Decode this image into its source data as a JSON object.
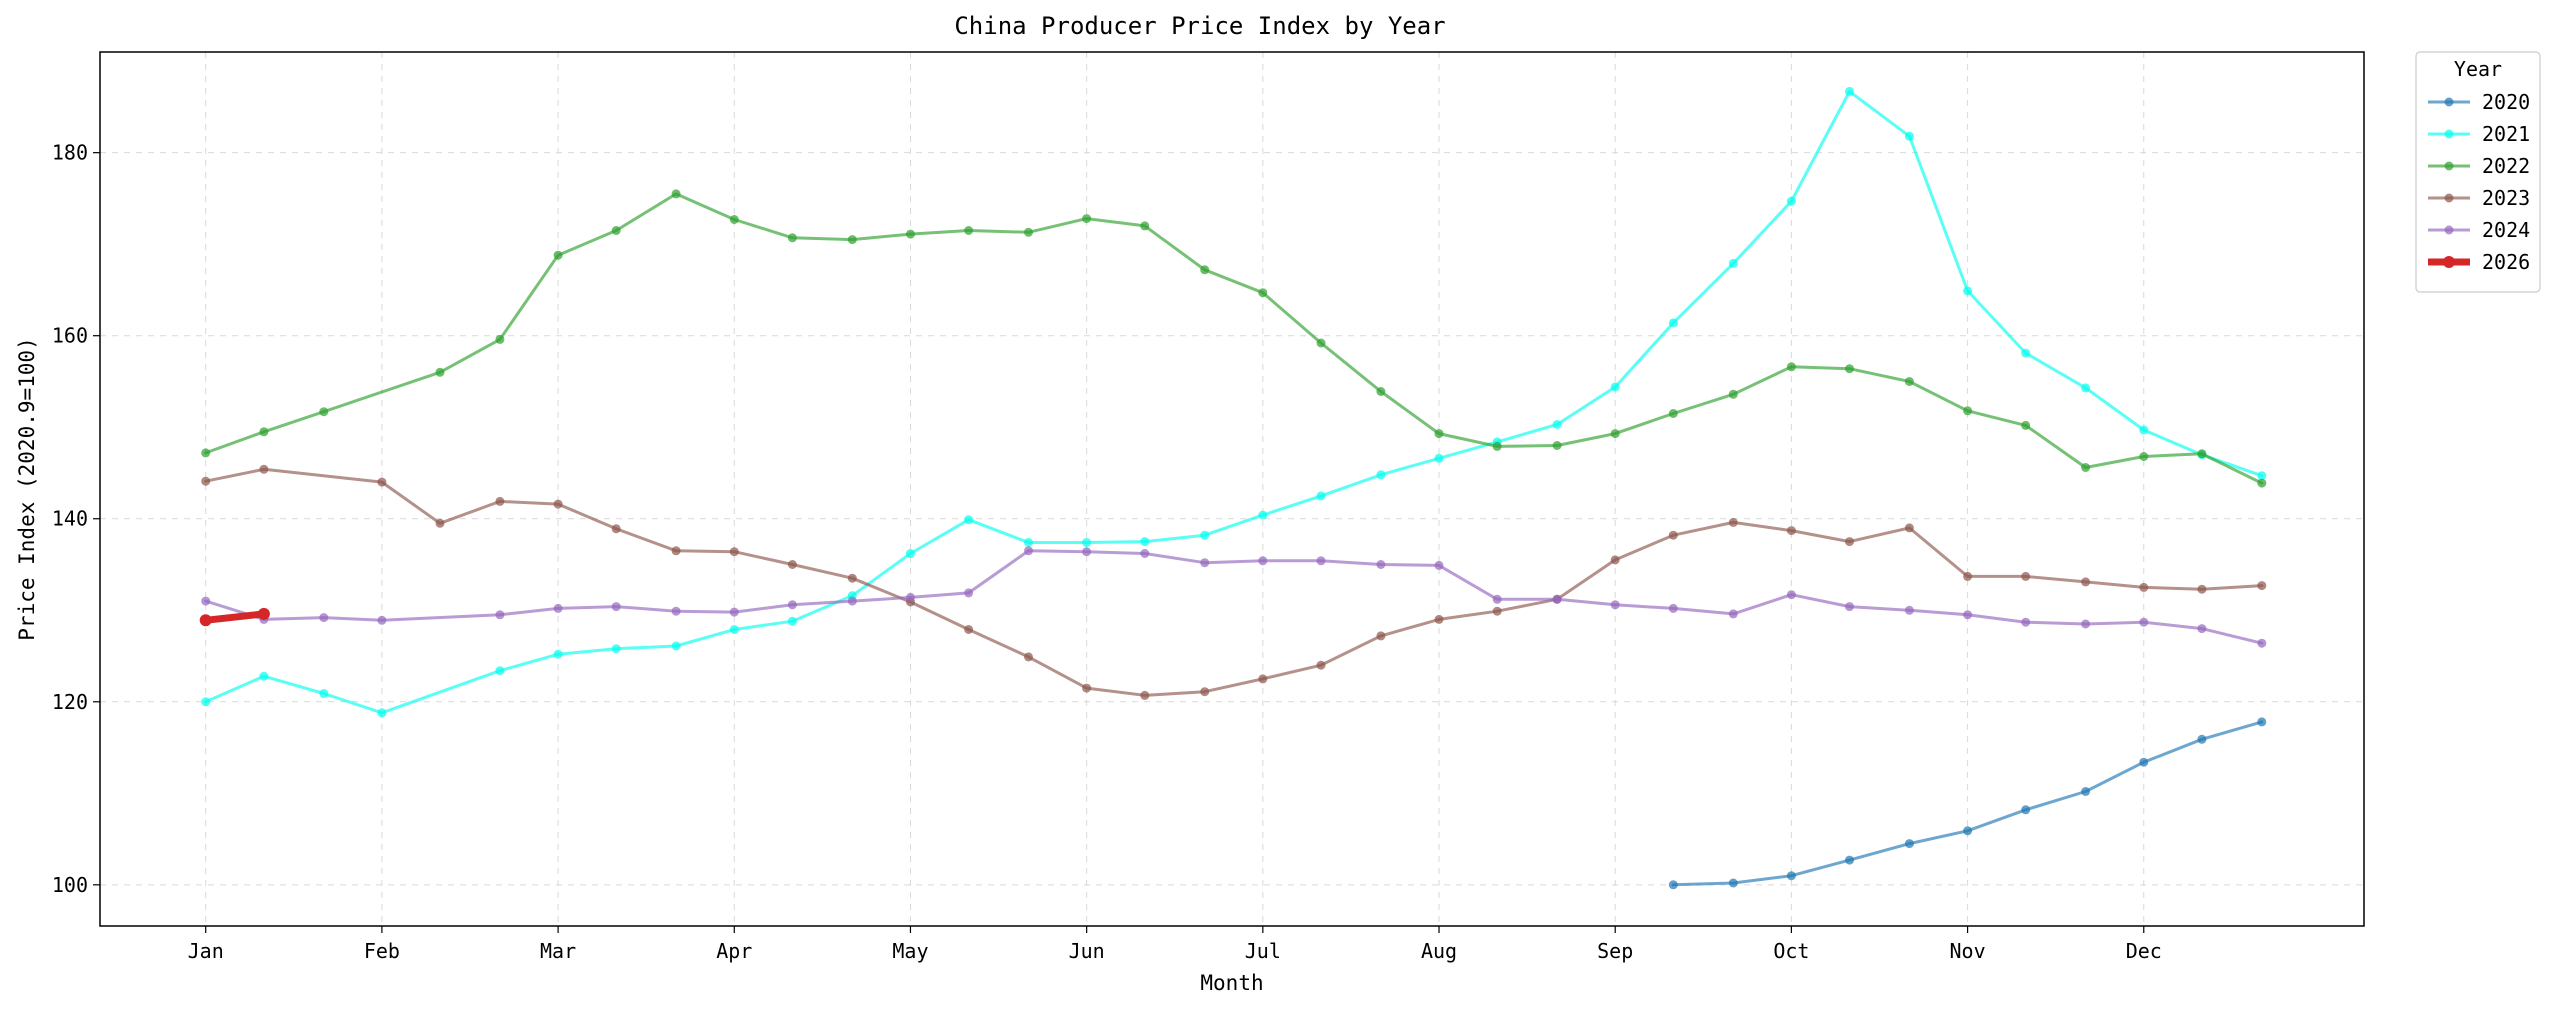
{
  "chart_data": {
    "type": "line",
    "title": "China Producer Price Index by Year",
    "xlabel": "Month",
    "ylabel": "Price Index (2020.9=100)",
    "x_ticks": [
      "Jan",
      "Feb",
      "Mar",
      "Apr",
      "May",
      "Jun",
      "Jul",
      "Aug",
      "Sep",
      "Oct",
      "Nov",
      "Dec"
    ],
    "y_ticks": [
      100,
      120,
      140,
      160,
      180
    ],
    "xlim": [
      -0.6,
      12.25
    ],
    "ylim": [
      95.5,
      191.0
    ],
    "grid": true,
    "legend": {
      "title": "Year",
      "placement": "outside-top-right"
    },
    "series": [
      {
        "name": "2020",
        "color": "#1f77b4",
        "points": [
          [
            8.33,
            100.0
          ],
          [
            8.67,
            100.2
          ],
          [
            9.0,
            101.0
          ],
          [
            9.33,
            102.7
          ],
          [
            9.67,
            104.5
          ],
          [
            10.0,
            105.9
          ],
          [
            10.33,
            108.2
          ],
          [
            10.67,
            110.2
          ],
          [
            11.0,
            113.4
          ],
          [
            11.33,
            115.9
          ],
          [
            11.67,
            117.8
          ]
        ]
      },
      {
        "name": "2021",
        "color": "#00ffee",
        "points": [
          [
            0.0,
            120.0
          ],
          [
            0.33,
            122.8
          ],
          [
            0.67,
            120.9
          ],
          [
            1.0,
            118.8
          ],
          [
            1.67,
            123.4
          ],
          [
            2.0,
            125.2
          ],
          [
            2.33,
            125.8
          ],
          [
            2.67,
            126.1
          ],
          [
            3.0,
            127.9
          ],
          [
            3.33,
            128.8
          ],
          [
            3.67,
            131.6
          ],
          [
            4.0,
            136.2
          ],
          [
            4.33,
            139.9
          ],
          [
            4.67,
            137.4
          ],
          [
            5.0,
            137.4
          ],
          [
            5.33,
            137.5
          ],
          [
            5.67,
            138.2
          ],
          [
            6.0,
            140.4
          ],
          [
            6.33,
            142.5
          ],
          [
            6.67,
            144.8
          ],
          [
            7.0,
            146.6
          ],
          [
            7.33,
            148.4
          ],
          [
            7.67,
            150.3
          ],
          [
            8.0,
            154.4
          ],
          [
            8.33,
            161.4
          ],
          [
            8.67,
            167.9
          ],
          [
            9.0,
            174.7
          ],
          [
            9.33,
            186.7
          ],
          [
            9.67,
            181.8
          ],
          [
            10.0,
            164.9
          ],
          [
            10.33,
            158.1
          ],
          [
            10.67,
            154.3
          ],
          [
            11.0,
            149.7
          ],
          [
            11.33,
            147.0
          ],
          [
            11.67,
            144.7
          ]
        ]
      },
      {
        "name": "2022",
        "color": "#2ca02c",
        "points": [
          [
            0.0,
            147.2
          ],
          [
            0.33,
            149.5
          ],
          [
            0.67,
            151.7
          ],
          [
            1.33,
            156.0
          ],
          [
            1.67,
            159.6
          ],
          [
            2.0,
            168.8
          ],
          [
            2.33,
            171.5
          ],
          [
            2.67,
            175.5
          ],
          [
            3.0,
            172.7
          ],
          [
            3.33,
            170.7
          ],
          [
            3.67,
            170.5
          ],
          [
            4.0,
            171.1
          ],
          [
            4.33,
            171.5
          ],
          [
            4.67,
            171.3
          ],
          [
            5.0,
            172.8
          ],
          [
            5.33,
            172.0
          ],
          [
            5.67,
            167.2
          ],
          [
            6.0,
            164.7
          ],
          [
            6.33,
            159.2
          ],
          [
            6.67,
            153.9
          ],
          [
            7.0,
            149.3
          ],
          [
            7.33,
            147.9
          ],
          [
            7.67,
            148.0
          ],
          [
            8.0,
            149.3
          ],
          [
            8.33,
            151.5
          ],
          [
            8.67,
            153.6
          ],
          [
            9.0,
            156.6
          ],
          [
            9.33,
            156.4
          ],
          [
            9.67,
            155.0
          ],
          [
            10.0,
            151.8
          ],
          [
            10.33,
            150.2
          ],
          [
            10.67,
            145.6
          ],
          [
            11.0,
            146.8
          ],
          [
            11.33,
            147.1
          ],
          [
            11.67,
            143.9
          ]
        ]
      },
      {
        "name": "2023",
        "color": "#8c564b",
        "points": [
          [
            0.0,
            144.1
          ],
          [
            0.33,
            145.4
          ],
          [
            1.0,
            144.0
          ],
          [
            1.33,
            139.5
          ],
          [
            1.67,
            141.9
          ],
          [
            2.0,
            141.6
          ],
          [
            2.33,
            138.9
          ],
          [
            2.67,
            136.5
          ],
          [
            3.0,
            136.4
          ],
          [
            3.33,
            135.0
          ],
          [
            3.67,
            133.5
          ],
          [
            4.0,
            130.9
          ],
          [
            4.33,
            127.9
          ],
          [
            4.67,
            124.9
          ],
          [
            5.0,
            121.5
          ],
          [
            5.33,
            120.7
          ],
          [
            5.67,
            121.1
          ],
          [
            6.0,
            122.5
          ],
          [
            6.33,
            124.0
          ],
          [
            6.67,
            127.2
          ],
          [
            7.0,
            129.0
          ],
          [
            7.33,
            129.9
          ],
          [
            7.67,
            131.2
          ],
          [
            8.0,
            135.5
          ],
          [
            8.33,
            138.2
          ],
          [
            8.67,
            139.6
          ],
          [
            9.0,
            138.7
          ],
          [
            9.33,
            137.5
          ],
          [
            9.67,
            139.0
          ],
          [
            10.0,
            133.7
          ],
          [
            10.33,
            133.7
          ],
          [
            10.67,
            133.1
          ],
          [
            11.0,
            132.5
          ],
          [
            11.33,
            132.3
          ],
          [
            11.67,
            132.7
          ]
        ]
      },
      {
        "name": "2024",
        "color": "#9467bd",
        "points": [
          [
            0.0,
            131.0
          ],
          [
            0.33,
            129.0
          ],
          [
            0.67,
            129.2
          ],
          [
            1.0,
            128.9
          ],
          [
            1.67,
            129.5
          ],
          [
            2.0,
            130.2
          ],
          [
            2.33,
            130.4
          ],
          [
            2.67,
            129.9
          ],
          [
            3.0,
            129.8
          ],
          [
            3.33,
            130.6
          ],
          [
            3.67,
            131.0
          ],
          [
            4.0,
            131.4
          ],
          [
            4.33,
            131.9
          ],
          [
            4.67,
            136.5
          ],
          [
            5.0,
            136.4
          ],
          [
            5.33,
            136.2
          ],
          [
            5.67,
            135.2
          ],
          [
            6.0,
            135.4
          ],
          [
            6.33,
            135.4
          ],
          [
            6.67,
            135.0
          ],
          [
            7.0,
            134.9
          ],
          [
            7.33,
            131.2
          ],
          [
            7.67,
            131.2
          ],
          [
            8.0,
            130.6
          ],
          [
            8.33,
            130.2
          ],
          [
            8.67,
            129.6
          ],
          [
            9.0,
            131.7
          ],
          [
            9.33,
            130.4
          ],
          [
            9.67,
            130.0
          ],
          [
            10.0,
            129.5
          ],
          [
            10.33,
            128.7
          ],
          [
            10.67,
            128.5
          ],
          [
            11.0,
            128.7
          ],
          [
            11.33,
            128.0
          ],
          [
            11.67,
            126.4
          ]
        ]
      },
      {
        "name": "2026",
        "color": "#d62728",
        "highlight": true,
        "points": [
          [
            0.0,
            128.9
          ],
          [
            0.33,
            129.6
          ]
        ]
      }
    ]
  }
}
